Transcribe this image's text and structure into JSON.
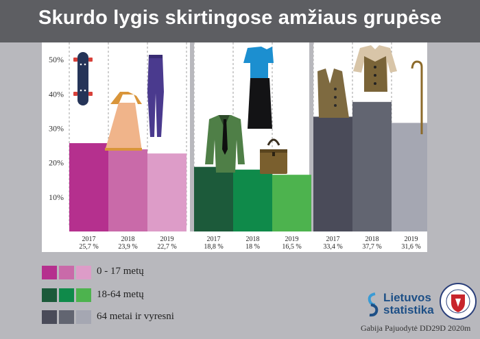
{
  "title": "Skurdo lygis skirtingose amžiaus grupėse",
  "colors": {
    "header": "#5d5e62",
    "background": "#b8b8bd",
    "group1": [
      "#b5308e",
      "#c96aa9",
      "#dd9cc8"
    ],
    "group2": [
      "#1c5a3a",
      "#0f8a4a",
      "#4db34e"
    ],
    "group3": [
      "#4a4b59",
      "#626571",
      "#a5a7b2"
    ]
  },
  "chart_data": {
    "type": "bar",
    "ylim": [
      0,
      55
    ],
    "yticks": [
      "10%",
      "20%",
      "30%",
      "40%",
      "50%"
    ],
    "grid": false,
    "groups": [
      {
        "name": "0 - 17 metų",
        "categories": [
          "2017",
          "2018",
          "2019"
        ],
        "values": [
          25.7,
          23.9,
          22.7
        ],
        "value_labels": [
          "25,7 %",
          "23,9 %",
          "22,7 %"
        ]
      },
      {
        "name": "18-64 metų",
        "categories": [
          "2017",
          "2018",
          "2019"
        ],
        "values": [
          18.8,
          18,
          16.5
        ],
        "value_labels": [
          "18,8 %",
          "18 %",
          "16,5 %"
        ]
      },
      {
        "name": "64 metai ir vyresni",
        "categories": [
          "2017",
          "2018",
          "2019"
        ],
        "values": [
          33.4,
          37.7,
          31.6
        ],
        "value_labels": [
          "33,4 %",
          "37,7 %",
          "31,6 %"
        ]
      }
    ]
  },
  "legend": [
    {
      "label": "0 - 17 metų"
    },
    {
      "label": "18-64 metų"
    },
    {
      "label": "64 metai ir vyresni"
    }
  ],
  "icons": [
    "skateboard-icon",
    "dress-icon",
    "leggings-icon",
    "blouse-icon",
    "skirt-icon",
    "handbag-icon",
    "jacket-icon",
    "vest-icon",
    "cardigan-icon",
    "cane-icon"
  ],
  "logo": {
    "line1": "Lietuvos",
    "line2": "statistika"
  },
  "credit": "Gabija Pajuodytė DD29D 2020m"
}
